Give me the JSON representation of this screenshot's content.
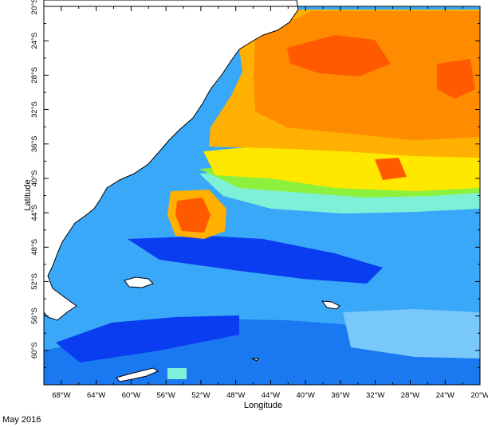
{
  "caption": "May 2016",
  "map": {
    "xlabel": "Longitude",
    "ylabel": "Latitude",
    "lon_range": [
      -70,
      -20
    ],
    "lat_range": [
      -64,
      -20
    ],
    "lon_ticks": [
      "68°W",
      "64°W",
      "60°W",
      "56°W",
      "52°W",
      "48°W",
      "44°W",
      "40°W",
      "36°W",
      "32°W",
      "28°W",
      "24°W",
      "20°W"
    ],
    "lat_ticks": [
      "20°S",
      "24°S",
      "28°S",
      "32°S",
      "36°S",
      "40°S",
      "44°S",
      "48°S",
      "52°S",
      "56°S",
      "60°S"
    ],
    "colors": {
      "deep_blue": "#0a3cf0",
      "blue": "#1a78f0",
      "light_blue": "#3aa8f8",
      "pale_blue": "#78c8fa",
      "cyan": "#7ff0d8",
      "green": "#8cf03c",
      "yellow": "#ffe800",
      "light_orange": "#ffb000",
      "orange": "#ff8c00",
      "red_orange": "#ff5a00",
      "land": "#ffffff",
      "frame": "#000000"
    }
  }
}
